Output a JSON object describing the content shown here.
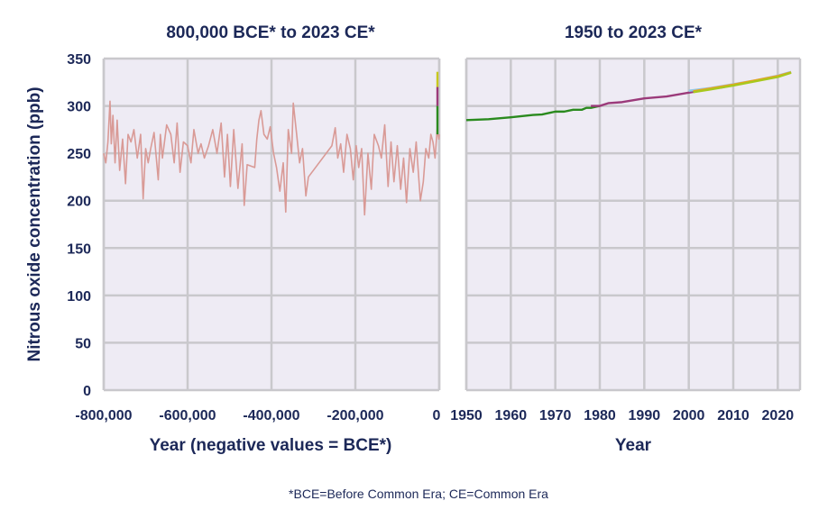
{
  "chart_data": [
    {
      "type": "line",
      "title": "800,000 BCE* to 2023 CE*",
      "xlabel": "Year (negative values = BCE*)",
      "ylabel": "Nitrous oxide concentration (ppb)",
      "xlim": [
        -800000,
        0
      ],
      "ylim": [
        0,
        350
      ],
      "grid": true,
      "xticks": [
        -800000,
        -600000,
        -400000,
        -200000,
        0
      ],
      "xtick_labels": [
        "-800,000",
        "-600,000",
        "-400,000",
        "-200,000",
        "0"
      ],
      "yticks": [
        0,
        50,
        100,
        150,
        200,
        250,
        300,
        350
      ],
      "series": [
        {
          "color": "#d99a96",
          "x": [
            -800000,
            -795000,
            -790000,
            -785000,
            -782000,
            -778000,
            -773000,
            -768000,
            -762000,
            -755000,
            -748000,
            -742000,
            -735000,
            -728000,
            -720000,
            -712000,
            -706000,
            -700000,
            -694000,
            -688000,
            -680000,
            -670000,
            -665000,
            -660000,
            -650000,
            -640000,
            -632000,
            -625000,
            -618000,
            -610000,
            -600000,
            -592000,
            -585000,
            -575000,
            -568000,
            -560000,
            -550000,
            -540000,
            -530000,
            -520000,
            -512000,
            -505000,
            -498000,
            -490000,
            -480000,
            -470000,
            -465000,
            -458000,
            -440000,
            -435000,
            -430000,
            -425000,
            -418000,
            -410000,
            -403000,
            -395000,
            -388000,
            -380000,
            -372000,
            -366000,
            -360000,
            -352000,
            -348000,
            -340000,
            -333000,
            -326000,
            -318000,
            -312000,
            -256000,
            -248000,
            -242000,
            -235000,
            -228000,
            -220000,
            -212000,
            -205000,
            -198000,
            -192000,
            -185000,
            -178000,
            -170000,
            -162000,
            -155000,
            -145000,
            -138000,
            -130000,
            -122000,
            -115000,
            -108000,
            -100000,
            -92000,
            -85000,
            -78000,
            -70000,
            -62000,
            -55000,
            -45000,
            -38000,
            -32000,
            -25000,
            -20000,
            -15000,
            -10000,
            -5000,
            -1000,
            0
          ],
          "y": [
            250,
            240,
            262,
            305,
            260,
            290,
            240,
            285,
            232,
            265,
            218,
            270,
            262,
            275,
            245,
            270,
            202,
            255,
            240,
            255,
            272,
            222,
            270,
            245,
            280,
            270,
            240,
            282,
            230,
            262,
            258,
            240,
            275,
            250,
            260,
            245,
            258,
            275,
            250,
            282,
            225,
            270,
            215,
            275,
            213,
            260,
            195,
            238,
            235,
            265,
            285,
            295,
            270,
            265,
            278,
            250,
            235,
            210,
            240,
            188,
            275,
            250,
            303,
            270,
            240,
            255,
            205,
            225,
            258,
            277,
            245,
            260,
            230,
            270,
            255,
            222,
            258,
            235,
            255,
            185,
            250,
            212,
            270,
            258,
            245,
            280,
            215,
            262,
            220,
            258,
            212,
            245,
            198,
            255,
            230,
            262,
            200,
            220,
            255,
            245,
            270,
            262,
            245,
            275,
            265,
            270
          ]
        },
        {
          "color": "#2a8a1e",
          "x": [
            0,
            0
          ],
          "y": [
            270,
            300
          ]
        },
        {
          "color": "#9b3a7a",
          "x": [
            0,
            0
          ],
          "y": [
            300,
            320
          ]
        },
        {
          "color": "#c8c81e",
          "x": [
            0,
            0
          ],
          "y": [
            320,
            336
          ]
        }
      ]
    },
    {
      "type": "line",
      "title": "1950 to 2023 CE*",
      "xlabel": "Year",
      "xlim": [
        1950,
        2025
      ],
      "ylim": [
        0,
        350
      ],
      "grid": true,
      "xticks": [
        1950,
        1960,
        1970,
        1980,
        1990,
        2000,
        2010,
        2020
      ],
      "series": [
        {
          "color": "#2a8a1e",
          "x": [
            1950,
            1955,
            1960,
            1965,
            1967,
            1969,
            1970,
            1972,
            1974,
            1976,
            1977,
            1978,
            1980
          ],
          "y": [
            285,
            286,
            288,
            290.5,
            291,
            293,
            294,
            294,
            296,
            296,
            298,
            298,
            300
          ]
        },
        {
          "color": "#9b3a7a",
          "x": [
            1978,
            1980,
            1982,
            1985,
            1990,
            1995,
            2000,
            2005,
            2008
          ],
          "y": [
            300,
            300,
            303,
            304,
            308,
            310,
            314,
            318,
            320
          ]
        },
        {
          "color": "#8fc8e8",
          "x": [
            2000,
            2005,
            2010,
            2015,
            2020,
            2023
          ],
          "y": [
            316,
            319,
            323,
            327,
            332,
            336
          ]
        },
        {
          "color": "#f0a020",
          "x": [
            2001,
            2005,
            2010,
            2015,
            2020,
            2023
          ],
          "y": [
            315.5,
            318.5,
            322.5,
            327,
            331.5,
            335.5
          ]
        },
        {
          "color": "#a8c81e",
          "x": [
            2001,
            2005,
            2010,
            2015,
            2020,
            2023
          ],
          "y": [
            314.5,
            317.5,
            321.5,
            326,
            330.5,
            335
          ]
        }
      ]
    }
  ],
  "footnote": "*BCE=Before Common Era; CE=Common Era"
}
